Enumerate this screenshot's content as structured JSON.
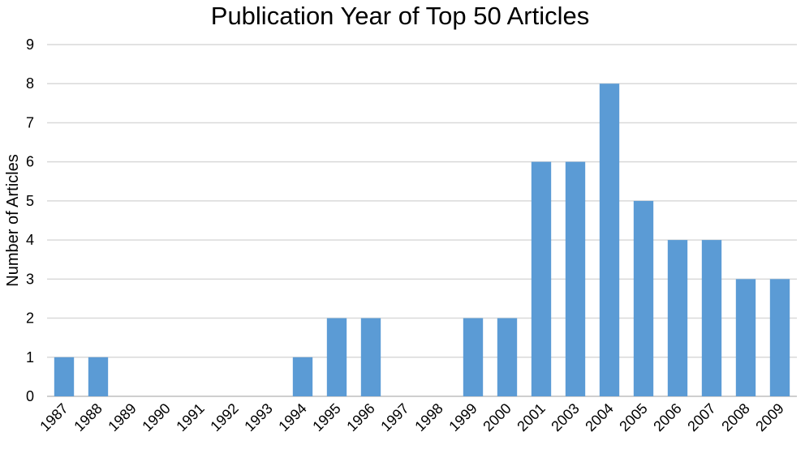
{
  "chart_data": {
    "type": "bar",
    "title": "Publication Year of Top 50 Articles",
    "xlabel": "",
    "ylabel": "Number of Articles",
    "ylim": [
      0,
      9
    ],
    "yticks": [
      "0",
      "1",
      "2",
      "3",
      "4",
      "5",
      "6",
      "7",
      "8",
      "9"
    ],
    "grid": true,
    "categories": [
      "1987",
      "1988",
      "1989",
      "1990",
      "1991",
      "1992",
      "1993",
      "1994",
      "1995",
      "1996",
      "1997",
      "1998",
      "1999",
      "2000",
      "2001",
      "2003",
      "2004",
      "2005",
      "2006",
      "2007",
      "2008",
      "2009"
    ],
    "values": [
      1,
      1,
      0,
      0,
      0,
      0,
      0,
      1,
      2,
      2,
      0,
      0,
      2,
      2,
      6,
      6,
      8,
      5,
      4,
      4,
      3,
      3
    ],
    "bar_color": "#5b9bd5"
  }
}
